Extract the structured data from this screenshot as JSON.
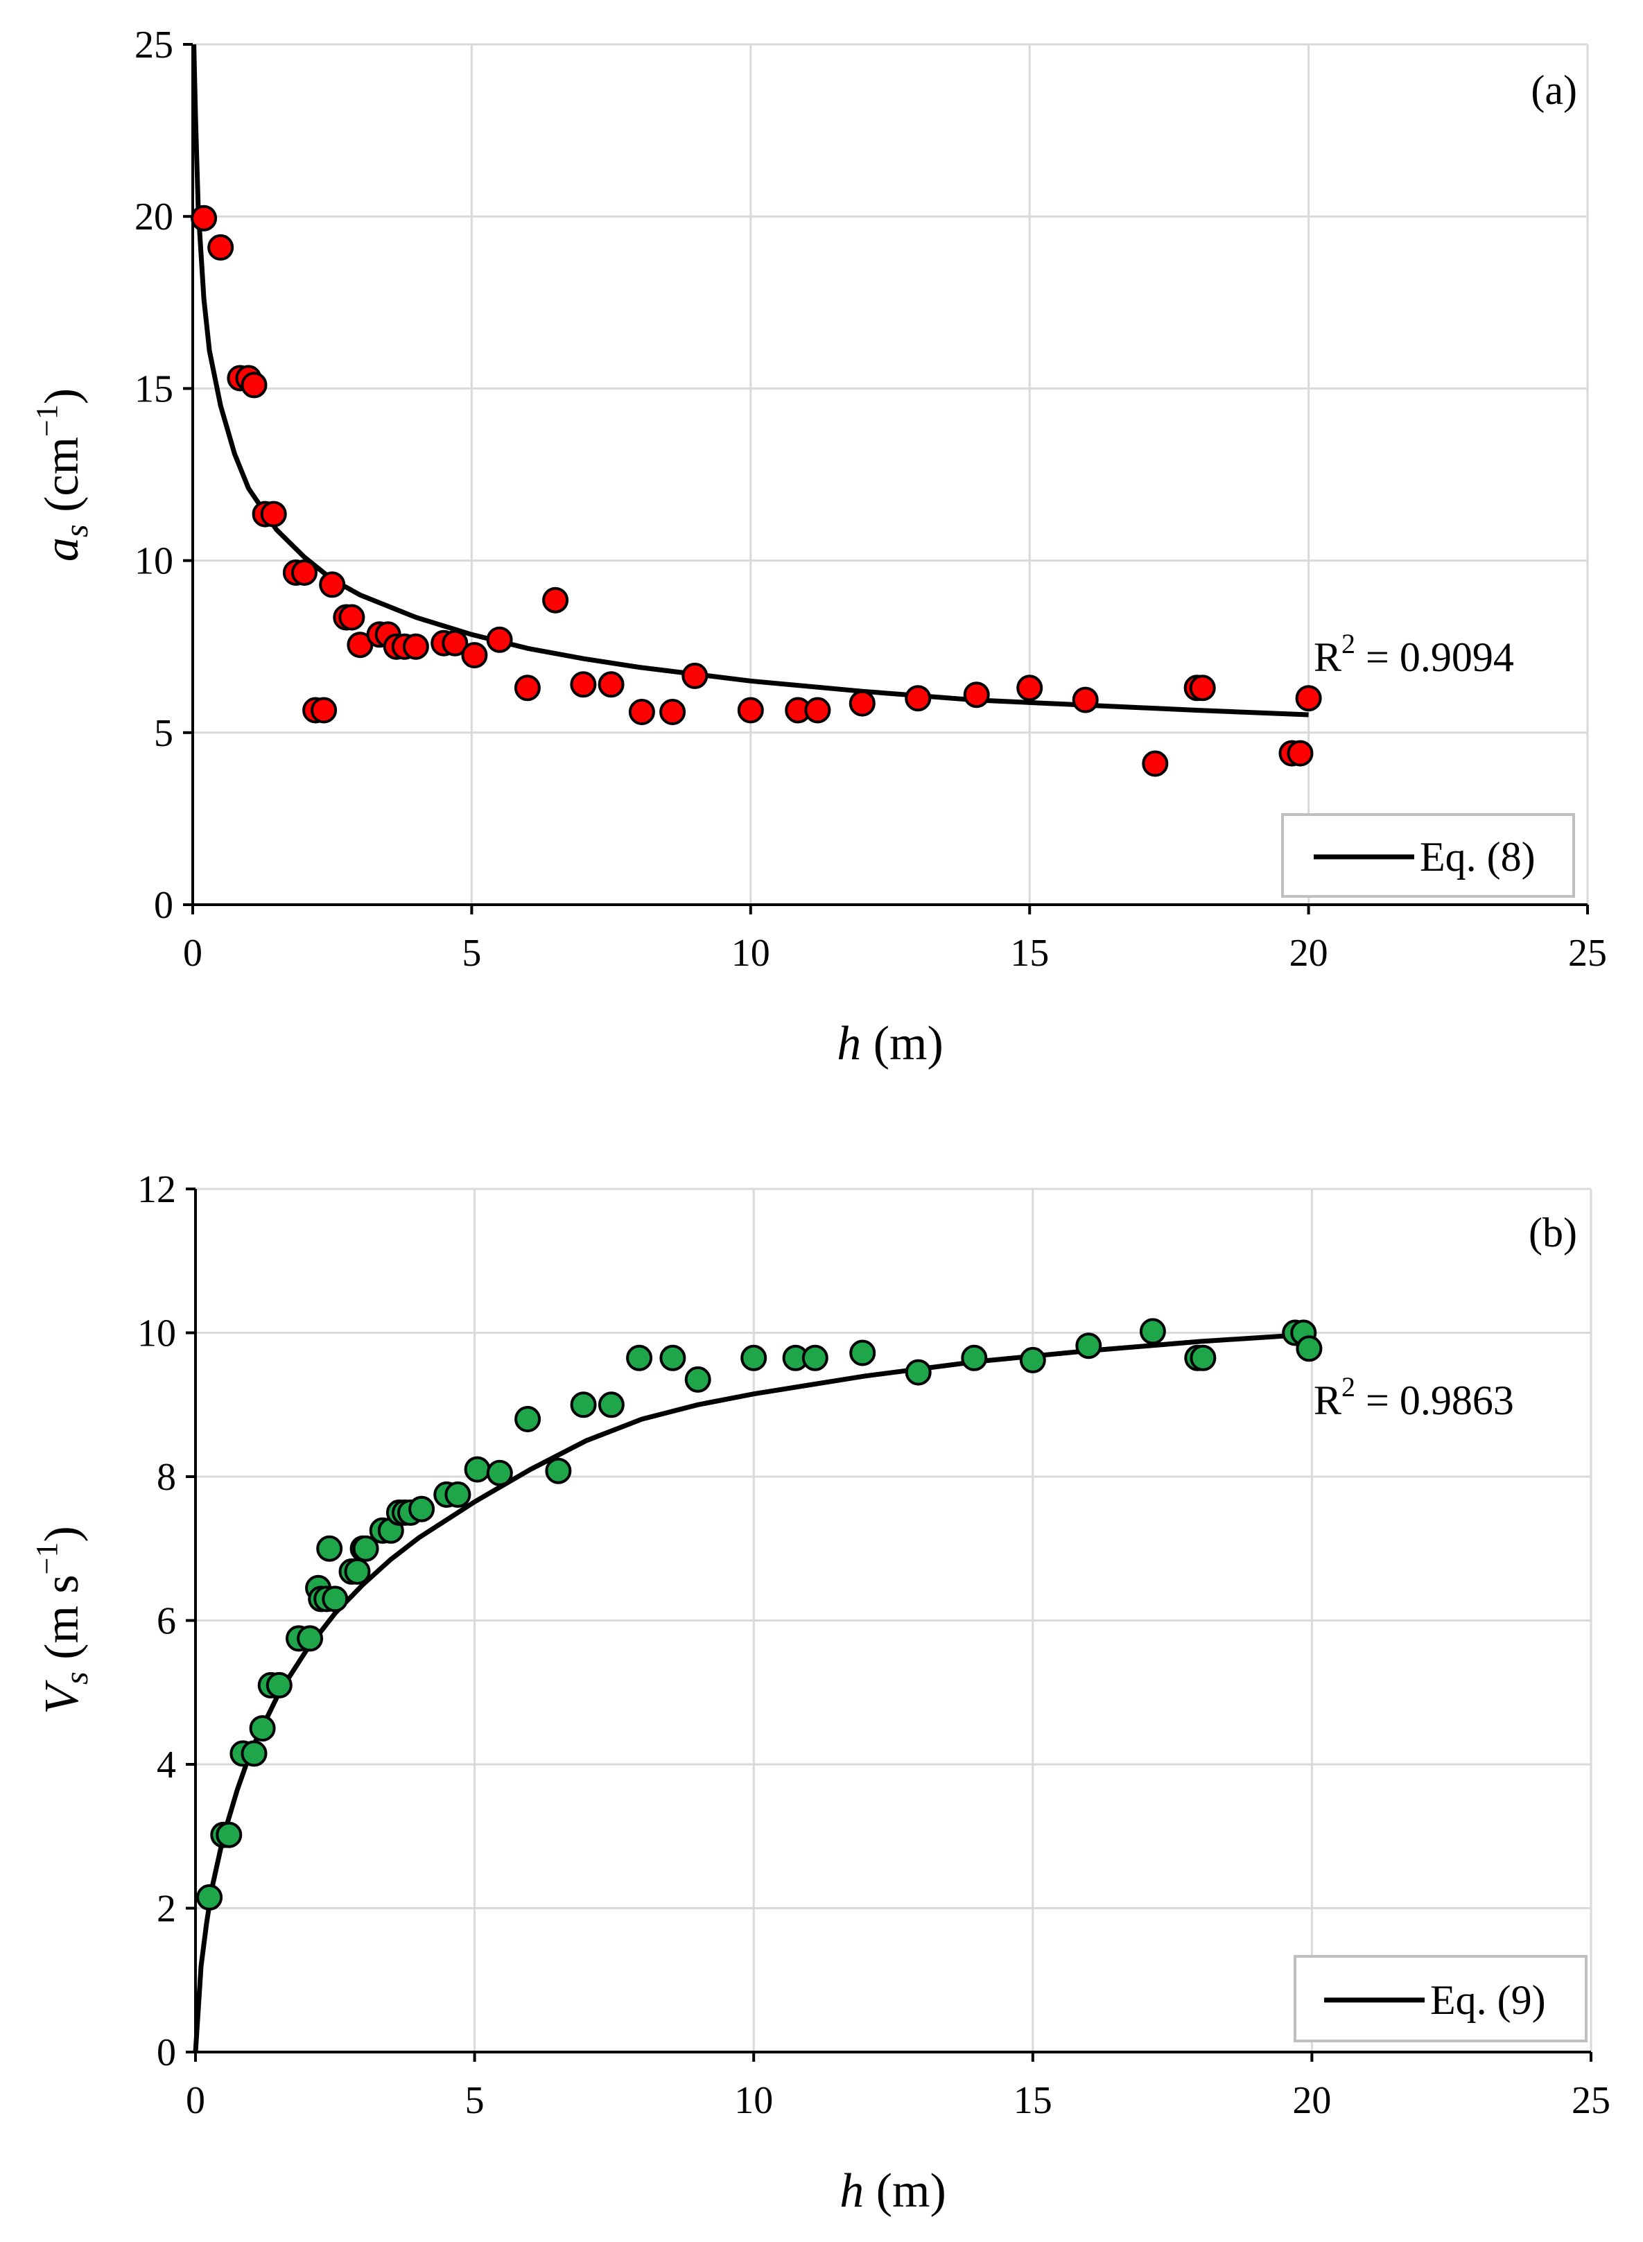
{
  "chart_data": [
    {
      "type": "scatter",
      "panel_label": "(a)",
      "xlabel_var": "h",
      "xlabel_unit": " (m)",
      "ylabel_var": "a",
      "ylabel_sub": "s",
      "ylabel_unit_pre": " (cm",
      "ylabel_sup": "−1",
      "ylabel_unit_post": ")",
      "xlim": [
        0,
        25
      ],
      "ylim": [
        0,
        25
      ],
      "x_ticks": [
        0,
        5,
        10,
        15,
        20,
        25
      ],
      "y_ticks": [
        0,
        5,
        10,
        15,
        20,
        25
      ],
      "grid": true,
      "marker_color": "#ff0000",
      "points": {
        "x": [
          0.2,
          0.5,
          0.85,
          1.0,
          1.1,
          1.3,
          1.45,
          1.85,
          2.0,
          2.2,
          2.35,
          2.5,
          2.75,
          2.85,
          3.0,
          3.35,
          3.5,
          3.65,
          3.8,
          4.0,
          4.5,
          4.7,
          5.05,
          5.5,
          6.0,
          6.5,
          7.0,
          7.5,
          8.05,
          8.6,
          9.0,
          10.0,
          10.85,
          11.2,
          12.0,
          13.0,
          14.05,
          15.0,
          16.0,
          17.25,
          18.0,
          18.1,
          19.7,
          19.85,
          20.0
        ],
        "y": [
          19.95,
          19.1,
          15.3,
          15.3,
          15.1,
          11.35,
          11.35,
          9.65,
          9.65,
          5.65,
          5.65,
          9.3,
          8.35,
          8.35,
          7.55,
          7.85,
          7.85,
          7.5,
          7.5,
          7.5,
          7.6,
          7.6,
          7.25,
          7.7,
          6.3,
          8.85,
          6.4,
          6.4,
          5.6,
          5.6,
          6.65,
          5.65,
          5.65,
          5.65,
          5.85,
          6.0,
          6.1,
          6.3,
          5.95,
          4.1,
          6.3,
          6.3,
          4.4,
          4.4,
          6.0
        ]
      },
      "fit": {
        "legend": "Eq. (8)",
        "x": [
          0.02,
          0.05,
          0.1,
          0.2,
          0.3,
          0.5,
          0.75,
          1.0,
          1.5,
          2.0,
          2.5,
          3.0,
          4.0,
          5.0,
          6.0,
          7.0,
          8.0,
          9.0,
          10.0,
          12.0,
          14.0,
          16.0,
          18.0,
          20.0
        ],
        "y": [
          25.0,
          22.9,
          20.2,
          17.6,
          16.1,
          14.5,
          13.1,
          12.1,
          10.9,
          10.1,
          9.45,
          9.0,
          8.35,
          7.85,
          7.45,
          7.15,
          6.9,
          6.7,
          6.5,
          6.2,
          5.95,
          5.8,
          5.65,
          5.52
        ]
      },
      "r2_text": "R",
      "r2_sup": "2",
      "r2_value": " = 0.9094",
      "legend_position": "bottom-right"
    },
    {
      "type": "scatter",
      "panel_label": "(b)",
      "xlabel_var": "h",
      "xlabel_unit": " (m)",
      "ylabel_var": "V",
      "ylabel_sub": "s",
      "ylabel_unit_pre": " (m s",
      "ylabel_sup": "−1",
      "ylabel_unit_post": ")",
      "xlim": [
        0,
        25
      ],
      "ylim": [
        0,
        12
      ],
      "x_ticks": [
        0,
        5,
        10,
        15,
        20,
        25
      ],
      "y_ticks": [
        0,
        2,
        4,
        6,
        8,
        10,
        12
      ],
      "grid": true,
      "marker_color": "#1fa64a",
      "points": {
        "x": [
          0.25,
          0.5,
          0.6,
          0.85,
          1.05,
          1.2,
          1.35,
          1.5,
          1.85,
          2.05,
          2.2,
          2.25,
          2.35,
          2.4,
          2.5,
          2.8,
          2.9,
          3.0,
          3.05,
          3.35,
          3.5,
          3.65,
          3.75,
          3.85,
          4.05,
          4.5,
          4.7,
          5.05,
          5.45,
          5.95,
          6.5,
          6.95,
          7.45,
          7.95,
          8.55,
          9.0,
          10.0,
          10.75,
          11.1,
          11.95,
          12.95,
          13.95,
          15.0,
          16.0,
          17.15,
          17.95,
          18.05,
          19.7,
          19.85,
          19.95
        ],
        "y": [
          2.15,
          3.02,
          3.02,
          4.15,
          4.15,
          4.5,
          5.1,
          5.1,
          5.75,
          5.75,
          6.45,
          6.3,
          6.3,
          7.0,
          6.3,
          6.68,
          6.68,
          7.0,
          7.0,
          7.25,
          7.25,
          7.5,
          7.5,
          7.5,
          7.55,
          7.75,
          7.75,
          8.1,
          8.05,
          8.8,
          8.08,
          9.0,
          9.0,
          9.65,
          9.65,
          9.35,
          9.65,
          9.65,
          9.65,
          9.72,
          9.45,
          9.65,
          9.62,
          9.82,
          10.02,
          9.65,
          9.65,
          10.0,
          10.0,
          9.78
        ]
      },
      "fit": {
        "legend": "Eq. (9)",
        "x": [
          0.0,
          0.1,
          0.2,
          0.3,
          0.5,
          0.75,
          1.0,
          1.5,
          2.0,
          2.5,
          3.0,
          3.5,
          4.0,
          5.0,
          6.0,
          7.0,
          8.0,
          9.0,
          10.0,
          12.0,
          14.0,
          16.0,
          18.0,
          19.6
        ],
        "y": [
          0.0,
          1.2,
          1.8,
          2.3,
          3.0,
          3.65,
          4.2,
          5.0,
          5.6,
          6.1,
          6.5,
          6.85,
          7.15,
          7.65,
          8.1,
          8.5,
          8.8,
          9.0,
          9.15,
          9.4,
          9.6,
          9.75,
          9.88,
          9.96
        ]
      },
      "r2_text": "R",
      "r2_sup": "2",
      "r2_value": " = 0.9863",
      "legend_position": "bottom-right"
    }
  ]
}
